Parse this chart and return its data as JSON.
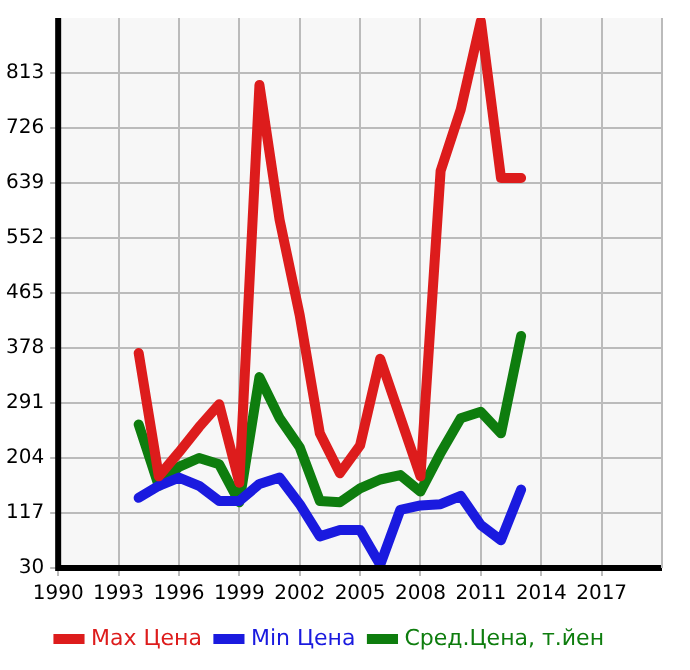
{
  "chart_data": {
    "type": "line",
    "x": [
      1994,
      1995,
      1996,
      1997,
      1998,
      1999,
      2000,
      2001,
      2002,
      2003,
      2004,
      2005,
      2006,
      2007,
      2008,
      2009,
      2010,
      2011,
      2012,
      2013
    ],
    "series": [
      {
        "name": "Max Цена",
        "color": "#dd1c1c",
        "values": [
          370,
          175,
          213,
          253,
          289,
          165,
          794,
          581,
          430,
          243,
          180,
          224,
          361,
          268,
          175,
          658,
          755,
          895,
          647,
          647
        ]
      },
      {
        "name": "Min Цена",
        "color": "#1a1adf",
        "values": [
          141,
          160,
          173,
          160,
          136,
          136,
          163,
          173,
          131,
          80,
          90,
          90,
          35,
          122,
          129,
          131,
          144,
          98,
          74,
          154
        ]
      },
      {
        "name": "Сред.Цена, т.йен",
        "color": "#0e7d0e",
        "values": [
          257,
          160,
          190,
          204,
          194,
          134,
          332,
          267,
          221,
          136,
          134,
          156,
          170,
          177,
          151,
          212,
          267,
          277,
          243,
          397
        ]
      }
    ],
    "xlim": [
      1990,
      2020
    ],
    "xticks": [
      1990,
      1993,
      1996,
      1999,
      2002,
      2005,
      2008,
      2011,
      2014,
      2017
    ],
    "ylim": [
      30,
      900
    ],
    "yticks": [
      30,
      117,
      204,
      291,
      378,
      465,
      552,
      639,
      726,
      813
    ],
    "grid": true,
    "legend": "bottom",
    "marker": "none",
    "line_style": "solid"
  }
}
